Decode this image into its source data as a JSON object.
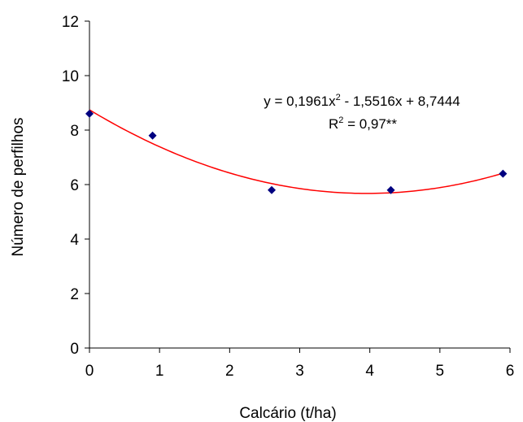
{
  "chart_data": {
    "type": "scatter",
    "xlabel": "Calcário (t/ha)",
    "ylabel": "Número de perfilhos",
    "xlim": [
      0,
      6
    ],
    "ylim": [
      0,
      12
    ],
    "x_ticks": [
      "0",
      "1",
      "2",
      "3",
      "4",
      "5",
      "6"
    ],
    "y_ticks": [
      "0",
      "2",
      "4",
      "6",
      "8",
      "10",
      "12"
    ],
    "grid": false,
    "legend": "none",
    "series": [
      {
        "marker": "diamond",
        "color": "#000080",
        "x": [
          0,
          0.9,
          2.6,
          4.3,
          5.9
        ],
        "y": [
          8.6,
          7.8,
          5.8,
          5.8,
          6.4
        ]
      }
    ],
    "trendline": {
      "type": "polynomial",
      "color": "#ff0000",
      "coefficients": [
        0.1961,
        -1.5516,
        8.7444
      ]
    },
    "annotations": {
      "equation": {
        "prefix": "y = 0,1961x",
        "sup": "2",
        "rest": " - 1,5516x + 8,7444"
      },
      "r2": {
        "prefix": "R",
        "sup": "2",
        "rest": " = 0,97**"
      }
    }
  }
}
